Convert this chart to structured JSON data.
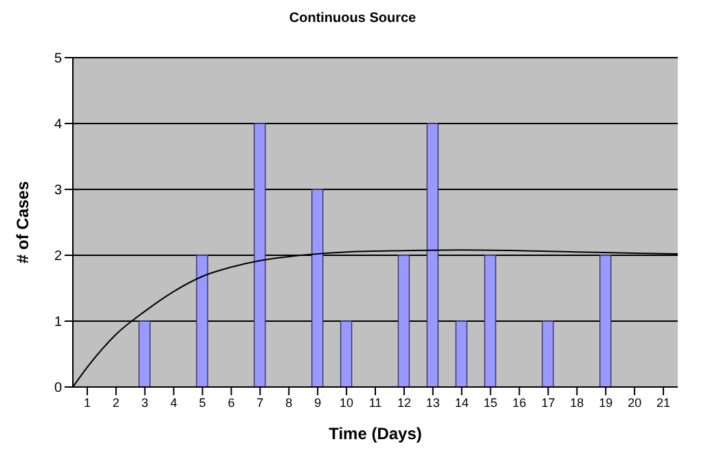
{
  "chart_data": {
    "type": "bar",
    "title": "Continuous Source",
    "xlabel": "Time (Days)",
    "ylabel": "# of Cases",
    "x": [
      1,
      2,
      3,
      4,
      5,
      6,
      7,
      8,
      9,
      10,
      11,
      12,
      13,
      14,
      15,
      16,
      17,
      18,
      19,
      20,
      21
    ],
    "xlim": [
      0.5,
      21.5
    ],
    "xticks": [
      1,
      2,
      3,
      4,
      5,
      6,
      7,
      8,
      9,
      10,
      11,
      12,
      13,
      14,
      15,
      16,
      17,
      18,
      19,
      20,
      21
    ],
    "ylim": [
      0,
      5
    ],
    "yticks": [
      0,
      1,
      2,
      3,
      4,
      5
    ],
    "grid": "y",
    "series": [
      {
        "color": "#9999ff",
        "values": [
          0,
          0,
          1,
          0,
          2,
          0,
          4,
          0,
          3,
          1,
          0,
          2,
          4,
          1,
          2,
          0,
          1,
          0,
          2,
          0,
          0
        ]
      },
      {
        "type": "line",
        "color": "#000000",
        "marker": "none",
        "x": [
          0.5,
          1,
          2,
          3,
          4,
          5,
          6,
          7,
          8,
          9,
          10,
          12,
          14,
          16,
          18,
          20,
          21.5
        ],
        "values": [
          0,
          0.3,
          0.8,
          1.15,
          1.45,
          1.68,
          1.82,
          1.92,
          1.98,
          2.02,
          2.05,
          2.07,
          2.08,
          2.07,
          2.05,
          2.03,
          2.02
        ]
      }
    ]
  }
}
